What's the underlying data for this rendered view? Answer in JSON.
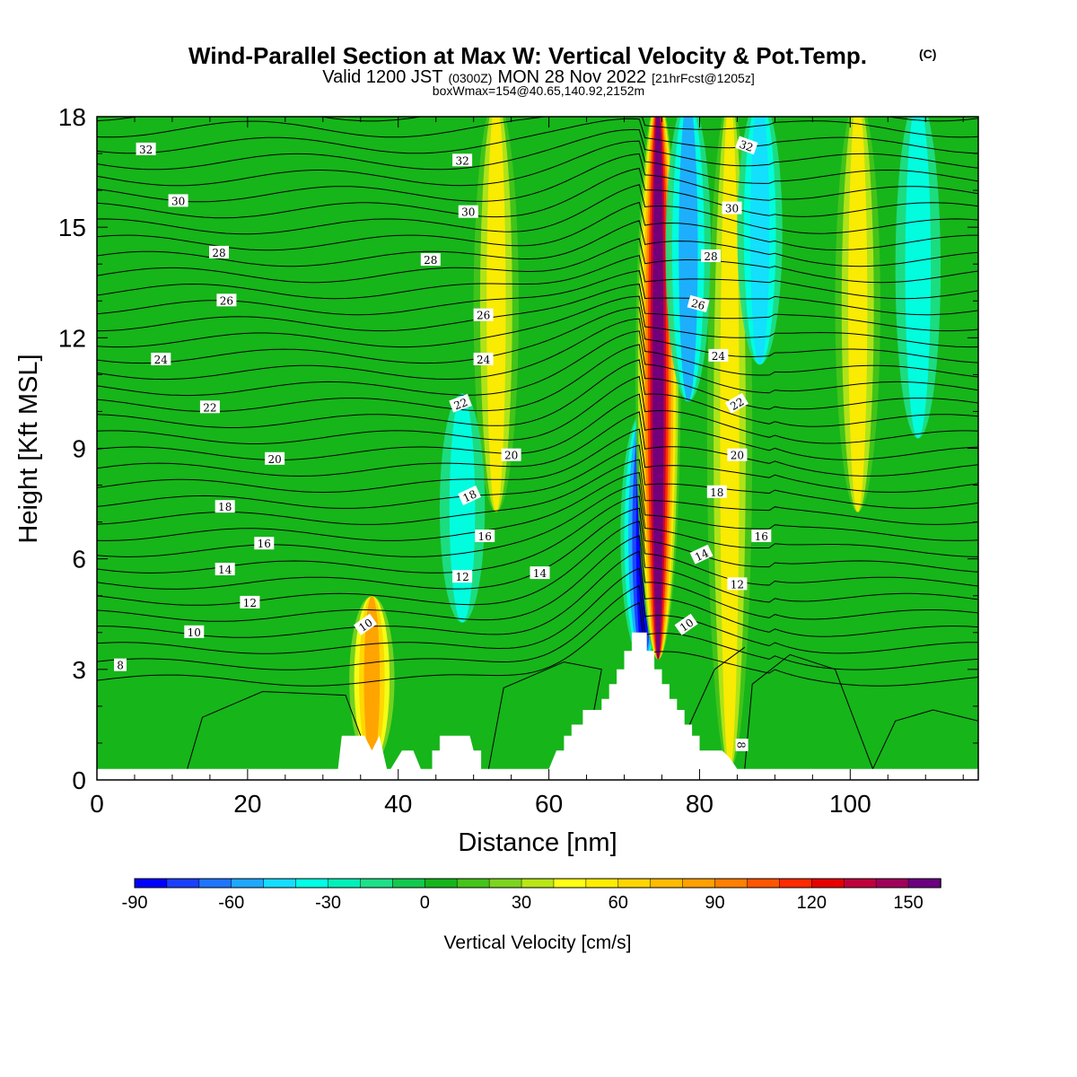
{
  "header": {
    "title": "Wind-Parallel Section at Max W: Vertical Velocity & Pot.Temp.",
    "title_mark": "(C)",
    "valid_a": "Valid 1200 JST",
    "valid_b": "(0300Z)",
    "valid_c": "MON 28 Nov 2022",
    "valid_d": "[21hrFcst@1205z]",
    "boxinfo": "boxWmax=154@40.65,140.92,2152m"
  },
  "colorbar": {
    "title": "Vertical Velocity [cm/s]",
    "ticks": [
      "-90",
      "-60",
      "-30",
      "0",
      "30",
      "60",
      "90",
      "120",
      "150"
    ],
    "levels": [
      -90,
      -80,
      -70,
      -60,
      -50,
      -40,
      -30,
      -20,
      -10,
      0,
      10,
      20,
      30,
      40,
      50,
      60,
      70,
      80,
      90,
      100,
      110,
      120,
      130,
      140,
      150,
      160
    ],
    "colors": [
      "#0000ff",
      "#1a3fff",
      "#1f75ff",
      "#1fa8ff",
      "#14ddff",
      "#00ffe6",
      "#00f0b8",
      "#1de089",
      "#12c94e",
      "#16b51a",
      "#45c41a",
      "#7dd41f",
      "#b8e617",
      "#ffff14",
      "#ffec00",
      "#ffd500",
      "#ffbb00",
      "#ffa000",
      "#ff7f00",
      "#ff5500",
      "#ff2a00",
      "#e60000",
      "#c0003c",
      "#a0005a",
      "#6b0080"
    ]
  },
  "chart_data": {
    "type": "heatmap",
    "title": "Wind-Parallel Section at Max W: Vertical Velocity & Pot.Temp.",
    "xlabel": "Distance [nm]",
    "ylabel": "Height [Kft MSL]",
    "xlim": [
      0,
      117
    ],
    "ylim": [
      0,
      18
    ],
    "xticks": [
      0,
      20,
      40,
      60,
      80,
      100
    ],
    "yticks": [
      0,
      3,
      6,
      9,
      12,
      15,
      18
    ],
    "grid": false,
    "fill_variable": "Vertical Velocity [cm/s]",
    "contour_variable": "Potential temperature (isentropes, labeled every 2)",
    "max_w": {
      "value": 154,
      "lat": 40.65,
      "lon": 140.92,
      "height_m": 2152
    },
    "w_bands": [
      {
        "x": 36.5,
        "w": 80,
        "ymin": 1.2,
        "ymax": 4.5,
        "note": "narrow updraft near 10 label"
      },
      {
        "x": 53,
        "w": 50,
        "ymin": 8,
        "ymax": 18,
        "note": "broad yellow-orange updraft aloft"
      },
      {
        "x": 48.5,
        "w": -40,
        "ymin": 5,
        "ymax": 10
      },
      {
        "x": 72.5,
        "w": -90,
        "ymin": 4,
        "ymax": 9.5,
        "note": "strongest downdraft"
      },
      {
        "x": 74.5,
        "w": 154,
        "ymin": 4,
        "ymax": 18,
        "note": "max updraft over peak"
      },
      {
        "x": 78.5,
        "w": -60,
        "ymin": 11,
        "ymax": 18
      },
      {
        "x": 84,
        "w": 55,
        "ymin": 1,
        "ymax": 18,
        "note": "yellow-orange updraft lee side"
      },
      {
        "x": 88,
        "w": -50,
        "ymin": 12,
        "ymax": 18
      },
      {
        "x": 101,
        "w": 50,
        "ymin": 8,
        "ymax": 18
      },
      {
        "x": 109,
        "w": -35,
        "ymin": 10,
        "ymax": 18
      }
    ],
    "terrain": [
      [
        0,
        0.3
      ],
      [
        32,
        0.3
      ],
      [
        32.5,
        1.2
      ],
      [
        35.5,
        1.2
      ],
      [
        36.5,
        0.8
      ],
      [
        37.5,
        1.2
      ],
      [
        38.5,
        0.3
      ],
      [
        39,
        0.3
      ],
      [
        40.5,
        0.8
      ],
      [
        42,
        0.8
      ],
      [
        43,
        0.3
      ],
      [
        44.5,
        0.3
      ],
      [
        44.5,
        0.8
      ],
      [
        45.5,
        0.8
      ],
      [
        45.5,
        1.2
      ],
      [
        49.5,
        1.2
      ],
      [
        50,
        0.8
      ],
      [
        51,
        0.8
      ],
      [
        51,
        0.3
      ],
      [
        60,
        0.3
      ],
      [
        61,
        0.8
      ],
      [
        62,
        0.8
      ],
      [
        62,
        1.2
      ],
      [
        63,
        1.2
      ],
      [
        63,
        1.5
      ],
      [
        64.5,
        1.5
      ],
      [
        64.5,
        1.9
      ],
      [
        67,
        1.9
      ],
      [
        67,
        2.2
      ],
      [
        68,
        2.2
      ],
      [
        68,
        2.6
      ],
      [
        69,
        2.6
      ],
      [
        69,
        3.0
      ],
      [
        70,
        3.0
      ],
      [
        70,
        3.5
      ],
      [
        71,
        3.5
      ],
      [
        71,
        4.0
      ],
      [
        73,
        4.0
      ],
      [
        73,
        3.5
      ],
      [
        74,
        3.5
      ],
      [
        74,
        3.0
      ],
      [
        75,
        3.0
      ],
      [
        75,
        2.6
      ],
      [
        76,
        2.6
      ],
      [
        76,
        2.2
      ],
      [
        77,
        2.2
      ],
      [
        77,
        1.9
      ],
      [
        78,
        1.9
      ],
      [
        78,
        1.5
      ],
      [
        79,
        1.5
      ],
      [
        79,
        1.2
      ],
      [
        80,
        1.2
      ],
      [
        80,
        0.8
      ],
      [
        83,
        0.8
      ],
      [
        84,
        0.6
      ],
      [
        85,
        0.3
      ],
      [
        117,
        0.3
      ]
    ],
    "isentrope_labels": [
      {
        "text": "32",
        "x": 6.5,
        "y": 17.1,
        "rot": 0
      },
      {
        "text": "30",
        "x": 10.8,
        "y": 15.7,
        "rot": 0
      },
      {
        "text": "28",
        "x": 16.2,
        "y": 14.3,
        "rot": 0
      },
      {
        "text": "26",
        "x": 17.2,
        "y": 13.0,
        "rot": 0
      },
      {
        "text": "24",
        "x": 8.5,
        "y": 11.4,
        "rot": 0
      },
      {
        "text": "22",
        "x": 15.0,
        "y": 10.1,
        "rot": 0
      },
      {
        "text": "20",
        "x": 23.6,
        "y": 8.7,
        "rot": 0
      },
      {
        "text": "18",
        "x": 17.0,
        "y": 7.4,
        "rot": 0
      },
      {
        "text": "16",
        "x": 22.2,
        "y": 6.4,
        "rot": 0
      },
      {
        "text": "14",
        "x": 17.0,
        "y": 5.7,
        "rot": 0
      },
      {
        "text": "12",
        "x": 20.3,
        "y": 4.8,
        "rot": 0
      },
      {
        "text": "10",
        "x": 12.9,
        "y": 4.0,
        "rot": 0
      },
      {
        "text": "8",
        "x": 3.1,
        "y": 3.1,
        "rot": 0
      },
      {
        "text": "10",
        "x": 35.7,
        "y": 4.2,
        "rot": -35
      },
      {
        "text": "32",
        "x": 48.5,
        "y": 16.8,
        "rot": 0
      },
      {
        "text": "30",
        "x": 49.3,
        "y": 15.4,
        "rot": 0
      },
      {
        "text": "28",
        "x": 44.3,
        "y": 14.1,
        "rot": 0
      },
      {
        "text": "26",
        "x": 51.3,
        "y": 12.6,
        "rot": 0
      },
      {
        "text": "24",
        "x": 51.3,
        "y": 11.4,
        "rot": 0
      },
      {
        "text": "22",
        "x": 48.3,
        "y": 10.2,
        "rot": -20
      },
      {
        "text": "20",
        "x": 55.0,
        "y": 8.8,
        "rot": 0
      },
      {
        "text": "18",
        "x": 49.5,
        "y": 7.7,
        "rot": -25
      },
      {
        "text": "16",
        "x": 51.5,
        "y": 6.6,
        "rot": 0
      },
      {
        "text": "14",
        "x": 58.8,
        "y": 5.6,
        "rot": 0
      },
      {
        "text": "12",
        "x": 48.5,
        "y": 5.5,
        "rot": 0
      },
      {
        "text": "32",
        "x": 86.2,
        "y": 17.2,
        "rot": 20
      },
      {
        "text": "30",
        "x": 84.3,
        "y": 15.5,
        "rot": 0
      },
      {
        "text": "28",
        "x": 81.5,
        "y": 14.2,
        "rot": 0
      },
      {
        "text": "26",
        "x": 79.8,
        "y": 12.9,
        "rot": 15
      },
      {
        "text": "24",
        "x": 82.5,
        "y": 11.5,
        "rot": 0
      },
      {
        "text": "22",
        "x": 85.0,
        "y": 10.2,
        "rot": -30
      },
      {
        "text": "20",
        "x": 85.0,
        "y": 8.8,
        "rot": 0
      },
      {
        "text": "18",
        "x": 82.3,
        "y": 7.8,
        "rot": 0
      },
      {
        "text": "16",
        "x": 88.2,
        "y": 6.6,
        "rot": 0
      },
      {
        "text": "14",
        "x": 80.3,
        "y": 6.1,
        "rot": -25
      },
      {
        "text": "12",
        "x": 85.0,
        "y": 5.3,
        "rot": 0
      },
      {
        "text": "10",
        "x": 78.3,
        "y": 4.2,
        "rot": -35
      },
      {
        "text": "8",
        "x": 85.5,
        "y": 0.95,
        "rot": 90
      }
    ]
  }
}
